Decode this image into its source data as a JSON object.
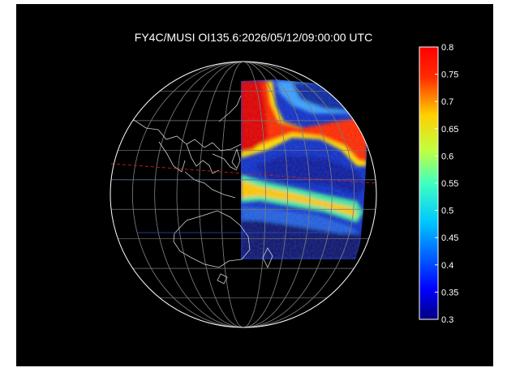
{
  "chart_data": {
    "type": "heatmap",
    "title": "FY4C/MUSI OI135.6:2026/05/12/09:00:00 UTC",
    "projection": "orthographic globe with latitude/longitude graticule and coastlines",
    "colormap": "jet",
    "colorbar": {
      "min": 0.3,
      "max": 0.8,
      "ticks": [
        0.8,
        0.75,
        0.7,
        0.65,
        0.6,
        0.55,
        0.5,
        0.45,
        0.4,
        0.35,
        0.3
      ],
      "tick_labels": [
        "0.8",
        "0.75",
        "0.7",
        "0.65",
        "0.6",
        "0.55",
        "0.5",
        "0.45",
        "0.4",
        "0.35",
        "0.3"
      ]
    },
    "observed_region": "right (eastern) portion of the disk",
    "value_range_observed": [
      0.3,
      0.8
    ],
    "reference_lines": "dashed lines near the equator (red and blue)"
  },
  "colors": {
    "background": "#000000",
    "frame": "#ffffff",
    "graticule": "#7a7a7a",
    "coastline": "#d0d0d0",
    "equator_line": "#cc2020",
    "reference_line": "#3050d0"
  }
}
